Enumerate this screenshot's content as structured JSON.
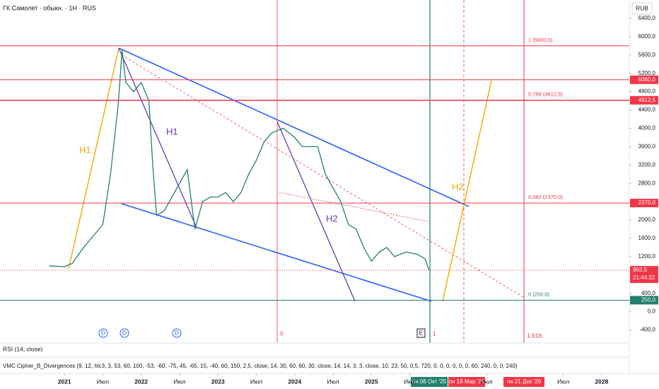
{
  "chart_data": {
    "type": "line",
    "title": "ГК Самолет · обыкн. · 1H · RUS",
    "currency": "RUB",
    "series": [
      {
        "name": "ГК Самолет",
        "color": "#22806f",
        "x": [
          2020.8,
          2021.0,
          2021.1,
          2021.25,
          2021.4,
          2021.5,
          2021.6,
          2021.7,
          2021.75,
          2021.8,
          2021.9,
          2022.0,
          2022.1,
          2022.15,
          2022.2,
          2022.3,
          2022.4,
          2022.5,
          2022.6,
          2022.7,
          2022.8,
          2022.9,
          2023.0,
          2023.1,
          2023.2,
          2023.3,
          2023.4,
          2023.5,
          2023.6,
          2023.7,
          2023.85,
          2024.0,
          2024.1,
          2024.3,
          2024.4,
          2024.5,
          2024.6,
          2024.7,
          2024.8,
          2024.9,
          2025.0,
          2025.1,
          2025.2,
          2025.3,
          2025.45,
          2025.6,
          2025.7,
          2025.75
        ],
        "values": [
          1000,
          980,
          1050,
          1400,
          1700,
          1900,
          3000,
          4500,
          5700,
          5000,
          4800,
          5000,
          4600,
          3200,
          2100,
          2200,
          2500,
          2800,
          3100,
          1800,
          2400,
          2500,
          2500,
          2600,
          2400,
          2600,
          3000,
          3300,
          3700,
          3900,
          4000,
          3800,
          3600,
          3600,
          3000,
          2700,
          2400,
          1900,
          1800,
          1400,
          1100,
          1300,
          1400,
          1200,
          1300,
          1250,
          1150,
          903.5
        ]
      }
    ],
    "xlim": [
      2020.16,
      2028.36
    ],
    "xticks": [
      2021,
      {
        "value": 2021.5,
        "label": "Июл"
      },
      2022,
      {
        "value": 2022.5,
        "label": "Июл"
      },
      2023,
      {
        "value": 2023.5,
        "label": "Июл"
      },
      2024,
      {
        "value": 2024.5,
        "label": "Июл"
      },
      2025,
      {
        "value": 2025.5,
        "label": "Июл"
      },
      {
        "value": 2026.5,
        "label": "Июл"
      },
      {
        "value": 2027.5,
        "label": "Июл"
      },
      2028
    ],
    "ylim": [
      -700,
      6800
    ],
    "yticks": [
      {
        "value": 6400,
        "label": "6400,0"
      },
      {
        "value": 6000,
        "label": "6000,0"
      },
      {
        "value": 5600,
        "label": "5600,0"
      },
      {
        "value": 5200,
        "label": "5200,0"
      },
      {
        "value": 4800,
        "label": "4800,0"
      },
      {
        "value": 4400,
        "label": "4400,0"
      },
      {
        "value": 4000,
        "label": "4000,0"
      },
      {
        "value": 3600,
        "label": "3600,0"
      },
      {
        "value": 3200,
        "label": "3200,0"
      },
      {
        "value": 2800,
        "label": "2800,0"
      },
      {
        "value": 2000,
        "label": "2000,0"
      },
      {
        "value": 1600,
        "label": "1600,0"
      },
      {
        "value": 1200,
        "label": "1200,0"
      },
      {
        "value": 400,
        "label": "400,0"
      },
      {
        "value": 0,
        "label": "0,0"
      },
      {
        "value": -400,
        "label": "-400,0"
      }
    ],
    "grid": false,
    "levels": [
      {
        "value": 5800,
        "label": "1 (5800,0)",
        "color": "#f23645"
      },
      {
        "value": 5060,
        "axis_label": "5060,0",
        "color": "#f23645"
      },
      {
        "value": 4612.5,
        "label": "0,786 (4612,5)",
        "axis_label": "4612,5",
        "color": "#f23645"
      },
      {
        "value": 2370,
        "label": "0,382 (2370,0)",
        "axis_label": "2370,0",
        "color": "#f23645"
      },
      {
        "value": 250,
        "label": "0 (250,0)",
        "axis_label": "250,0",
        "color": "#22806f"
      }
    ],
    "last_price": {
      "value": 903.5,
      "label": "903,5",
      "countdown": "21:44:32",
      "color": "#f23645"
    },
    "annotations": [
      "H1",
      "H1",
      "H2",
      "H2",
      "0",
      "1",
      "1.618"
    ],
    "markers": [
      "D",
      "D",
      "D",
      "E"
    ],
    "date_markers": [
      "пн 06 Окт '25",
      "пн 16 Мар '26",
      "пн 21 Дек '26"
    ],
    "indicators": [
      "RSI (14, close)",
      "VMC Cipher_B_Divergences (9, 12, hlc3, 3, 53, 60, 100, -53, -60, -75, 45, -65, 15, -40, 60, 150, 2,5, close, 14, 30, 60, 60, 30, close, 14, 14, 3, 3, close, 10, 23, 50, 0,5, 720, 0, 0, 0, 0, 0, 0, 60, 240, 0, 0, 240)"
    ]
  }
}
